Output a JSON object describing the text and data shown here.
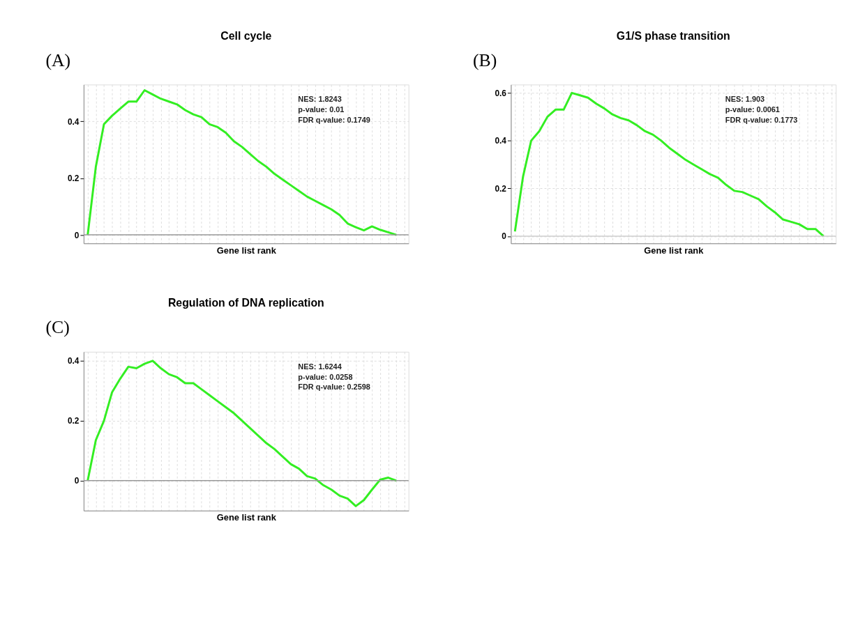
{
  "chart_data": [
    {
      "type": "line",
      "title": "Cell cycle",
      "xlabel": "Gene list rank",
      "tick_labels": "y",
      "grid": true,
      "categories": [
        null,
        null,
        null,
        null,
        null,
        null,
        null,
        null,
        null,
        null,
        null,
        null,
        null,
        null,
        null,
        null,
        null,
        null,
        null,
        null,
        null,
        null,
        null,
        null,
        null,
        null,
        null,
        null,
        null,
        null,
        null,
        null,
        null,
        null,
        null,
        null,
        null,
        null,
        null,
        null
      ],
      "series": [
        {
          "color": "#33ee22",
          "values": [
            0,
            0.24,
            0.39,
            0.42,
            0.445,
            0.47,
            0.47,
            0.51,
            0.495,
            0.48,
            0.47,
            0.46,
            0.44,
            0.425,
            0.415,
            0.39,
            0.38,
            0.36,
            0.33,
            0.31,
            0.285,
            0.26,
            0.24,
            0.215,
            0.195,
            0.175,
            0.155,
            0.135,
            0.12,
            0.105,
            0.09,
            0.07,
            0.04,
            0.027,
            0.016,
            0.03,
            0.018,
            0.009,
            0,
            null
          ]
        }
      ],
      "ylim": [
        -0.03,
        0.53
      ],
      "yticks": [
        0,
        0.2,
        0.4
      ],
      "ref_lines": [
        {
          "axis": "y",
          "value": 0,
          "color": "#999999"
        }
      ],
      "annotations": [
        "(A)",
        "NES: 1.8243",
        "p-value: 0.01",
        "FDR q-value: 0.1749"
      ]
    },
    {
      "type": "line",
      "title": "G1/S phase transition",
      "xlabel": "Gene list rank",
      "tick_labels": "y",
      "grid": true,
      "categories": [
        null,
        null,
        null,
        null,
        null,
        null,
        null,
        null,
        null,
        null,
        null,
        null,
        null,
        null,
        null,
        null,
        null,
        null,
        null,
        null,
        null,
        null,
        null,
        null,
        null,
        null,
        null,
        null,
        null,
        null,
        null,
        null,
        null,
        null,
        null,
        null,
        null,
        null,
        null,
        null
      ],
      "series": [
        {
          "color": "#33ee22",
          "values": [
            0.02,
            0.25,
            0.4,
            0.44,
            0.5,
            0.53,
            0.53,
            0.6,
            0.59,
            0.58,
            0.555,
            0.535,
            0.51,
            0.495,
            0.485,
            0.465,
            0.44,
            0.425,
            0.4,
            0.37,
            0.345,
            0.32,
            0.3,
            0.28,
            0.26,
            0.245,
            0.215,
            0.19,
            0.185,
            0.17,
            0.155,
            0.125,
            0.1,
            0.07,
            0.06,
            0.05,
            0.03,
            0.03,
            0,
            null
          ]
        }
      ],
      "ylim": [
        -0.03,
        0.635
      ],
      "yticks": [
        0,
        0.2,
        0.4,
        0.6
      ],
      "ref_lines": [
        {
          "axis": "y",
          "value": 0,
          "color": "#cccccc"
        }
      ],
      "annotations": [
        "(B)",
        "NES: 1.903",
        "p-value: 0.0061",
        "FDR q-value: 0.1773"
      ]
    },
    {
      "type": "line",
      "title": "Regulation of DNA replication",
      "xlabel": "Gene list rank",
      "tick_labels": "y",
      "grid": true,
      "categories": [
        null,
        null,
        null,
        null,
        null,
        null,
        null,
        null,
        null,
        null,
        null,
        null,
        null,
        null,
        null,
        null,
        null,
        null,
        null,
        null,
        null,
        null,
        null,
        null,
        null,
        null,
        null,
        null,
        null,
        null,
        null,
        null,
        null,
        null,
        null,
        null,
        null,
        null,
        null,
        null
      ],
      "series": [
        {
          "color": "#33ee22",
          "values": [
            0,
            0.135,
            0.2,
            0.295,
            0.34,
            0.38,
            0.375,
            0.39,
            0.4,
            0.375,
            0.355,
            0.345,
            0.325,
            0.325,
            0.305,
            0.285,
            0.265,
            0.245,
            0.225,
            0.2,
            0.175,
            0.15,
            0.125,
            0.105,
            0.08,
            0.055,
            0.04,
            0.015,
            0.007,
            -0.015,
            -0.03,
            -0.05,
            -0.06,
            -0.085,
            -0.065,
            -0.03,
            0.003,
            0.01,
            0,
            null
          ]
        }
      ],
      "ylim": [
        -0.1,
        0.43
      ],
      "yticks": [
        0,
        0.2,
        0.4
      ],
      "ref_lines": [
        {
          "axis": "y",
          "value": 0,
          "color": "#999999"
        }
      ],
      "annotations": [
        "(C)",
        "NES: 1.6244",
        "p-value: 0.0258",
        "FDR q-value: 0.2598"
      ]
    }
  ]
}
